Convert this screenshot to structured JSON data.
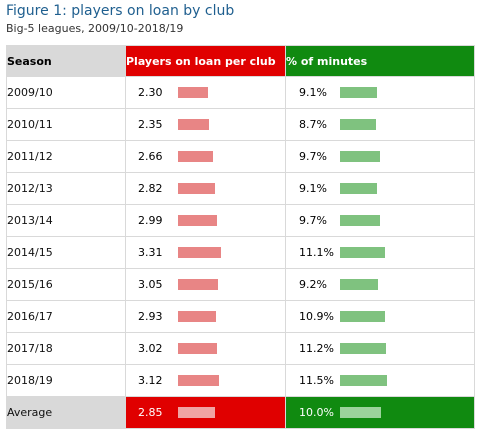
{
  "title": "Figure 1: players on loan by club",
  "subtitle": "Big-5 leagues, 2009/10-2018/19",
  "colors": {
    "title": "#1f5f8f",
    "loan_header": "#e00000",
    "loan_bar": "#e88585",
    "minutes_header": "#108a10",
    "minutes_bar": "#7fc27f",
    "season_header": "#d9d9d9"
  },
  "chart_data": {
    "type": "table",
    "columns": [
      "Season",
      "Players on loan per club",
      "% of minutes"
    ],
    "rows": [
      {
        "season": "2009/10",
        "loan": 2.3,
        "loan_text": "2.30",
        "minutes": 9.1,
        "minutes_text": "9.1%"
      },
      {
        "season": "2010/11",
        "loan": 2.35,
        "loan_text": "2.35",
        "minutes": 8.7,
        "minutes_text": "8.7%"
      },
      {
        "season": "2011/12",
        "loan": 2.66,
        "loan_text": "2.66",
        "minutes": 9.7,
        "minutes_text": "9.7%"
      },
      {
        "season": "2012/13",
        "loan": 2.82,
        "loan_text": "2.82",
        "minutes": 9.1,
        "minutes_text": "9.1%"
      },
      {
        "season": "2013/14",
        "loan": 2.99,
        "loan_text": "2.99",
        "minutes": 9.7,
        "minutes_text": "9.7%"
      },
      {
        "season": "2014/15",
        "loan": 3.31,
        "loan_text": "3.31",
        "minutes": 11.1,
        "minutes_text": "11.1%"
      },
      {
        "season": "2015/16",
        "loan": 3.05,
        "loan_text": "3.05",
        "minutes": 9.2,
        "minutes_text": "9.2%"
      },
      {
        "season": "2016/17",
        "loan": 2.93,
        "loan_text": "2.93",
        "minutes": 10.9,
        "minutes_text": "10.9%"
      },
      {
        "season": "2017/18",
        "loan": 3.02,
        "loan_text": "3.02",
        "minutes": 11.2,
        "minutes_text": "11.2%"
      },
      {
        "season": "2018/19",
        "loan": 3.12,
        "loan_text": "3.12",
        "minutes": 11.5,
        "minutes_text": "11.5%"
      }
    ],
    "average": {
      "season": "Average",
      "loan": 2.85,
      "loan_text": "2.85",
      "minutes": 10.0,
      "minutes_text": "10.0%"
    }
  }
}
